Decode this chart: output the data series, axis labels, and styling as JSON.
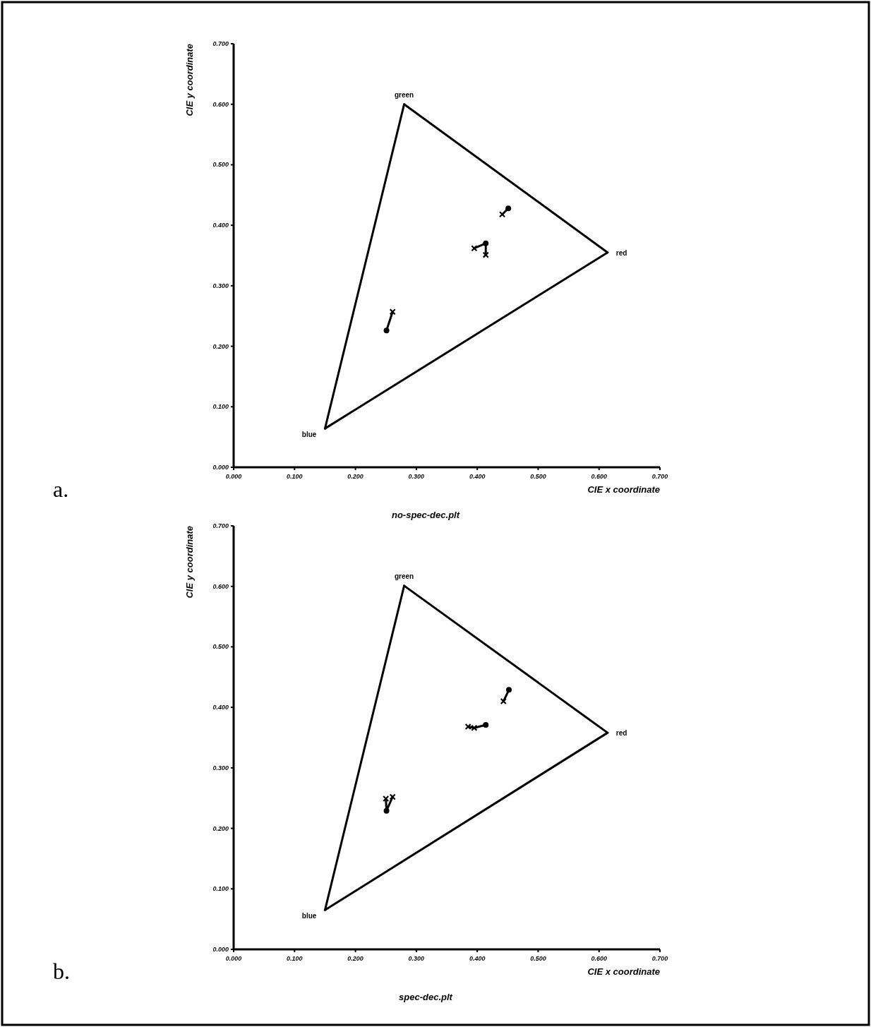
{
  "chart_data": [
    {
      "type": "scatter",
      "title": "no-spec-dec.plt",
      "xlabel": "CIE x coordinate",
      "ylabel": "CIE y coordinate",
      "xlim": [
        0,
        0.7
      ],
      "ylim": [
        0,
        0.7
      ],
      "xticks": [
        {
          "value": 0,
          "label": "0.000"
        },
        {
          "value": 0.1,
          "label": "0.100"
        },
        {
          "value": 0.2,
          "label": "0.200"
        },
        {
          "value": 0.3,
          "label": "0.300"
        },
        {
          "value": 0.4,
          "label": "0.400"
        },
        {
          "value": 0.5,
          "label": "0.500"
        },
        {
          "value": 0.6,
          "label": "0.600"
        },
        {
          "value": 0.7,
          "label": "0.700"
        }
      ],
      "yticks": [
        {
          "value": 0,
          "label": "0.000"
        },
        {
          "value": 0.1,
          "label": "0.100"
        },
        {
          "value": 0.2,
          "label": "0.200"
        },
        {
          "value": 0.3,
          "label": "0.300"
        },
        {
          "value": 0.4,
          "label": "0.400"
        },
        {
          "value": 0.5,
          "label": "0.500"
        },
        {
          "value": 0.6,
          "label": "0.600"
        },
        {
          "value": 0.7,
          "label": "0.700"
        }
      ],
      "series": [
        {
          "type": "line",
          "color": "#000000",
          "marker": "none",
          "x": [
            0.15,
            0.28
          ],
          "values": [
            0.064,
            0.6
          ]
        },
        {
          "type": "line",
          "color": "#000000",
          "marker": "none",
          "x": [
            0.28,
            0.614
          ],
          "values": [
            0.6,
            0.355
          ]
        },
        {
          "type": "line",
          "color": "#000000",
          "marker": "none",
          "x": [
            0.15,
            0.614
          ],
          "values": [
            0.064,
            0.355
          ]
        },
        {
          "type": "line",
          "color": "#000000",
          "marker": "none",
          "x": [
            0.441,
            0.451
          ],
          "values": [
            0.418,
            0.428
          ]
        },
        {
          "type": "line",
          "color": "#000000",
          "marker": "none",
          "x": [
            0.395,
            0.414,
            0.414
          ],
          "values": [
            0.362,
            0.37,
            0.351
          ]
        },
        {
          "type": "line",
          "color": "#000000",
          "marker": "none",
          "x": [
            0.251,
            0.261
          ],
          "values": [
            0.226,
            0.257
          ]
        },
        {
          "type": "scatter",
          "color": "#000000",
          "marker": "circle",
          "x": [
            0.451,
            0.414,
            0.251
          ],
          "values": [
            0.428,
            0.37,
            0.226
          ]
        },
        {
          "type": "scatter",
          "color": "#000000",
          "marker": "cross",
          "x": [
            0.441,
            0.395,
            0.414,
            0.261
          ],
          "values": [
            0.418,
            0.362,
            0.351,
            0.257
          ]
        }
      ],
      "annotations": [
        {
          "text": "green",
          "x": 0.28,
          "y": 0.6
        },
        {
          "text": "red",
          "x": 0.614,
          "y": 0.355
        },
        {
          "text": "blue",
          "x": 0.15,
          "y": 0.064
        },
        "a."
      ]
    },
    {
      "type": "scatter",
      "title": "spec-dec.plt",
      "xlabel": "CIE x coordinate",
      "ylabel": "CIE y coordinate",
      "xlim": [
        0,
        0.7
      ],
      "ylim": [
        0,
        0.7
      ],
      "xticks": [
        {
          "value": 0,
          "label": "0.000"
        },
        {
          "value": 0.1,
          "label": "0.100"
        },
        {
          "value": 0.2,
          "label": "0.200"
        },
        {
          "value": 0.3,
          "label": "0.300"
        },
        {
          "value": 0.4,
          "label": "0.400"
        },
        {
          "value": 0.5,
          "label": "0.500"
        },
        {
          "value": 0.6,
          "label": "0.600"
        },
        {
          "value": 0.7,
          "label": "0.700"
        }
      ],
      "yticks": [
        {
          "value": 0,
          "label": "0.000"
        },
        {
          "value": 0.1,
          "label": "0.100"
        },
        {
          "value": 0.2,
          "label": "0.200"
        },
        {
          "value": 0.3,
          "label": "0.300"
        },
        {
          "value": 0.4,
          "label": "0.400"
        },
        {
          "value": 0.5,
          "label": "0.500"
        },
        {
          "value": 0.6,
          "label": "0.600"
        },
        {
          "value": 0.7,
          "label": "0.700"
        }
      ],
      "series": [
        {
          "type": "line",
          "color": "#000000",
          "marker": "none",
          "x": [
            0.15,
            0.28
          ],
          "values": [
            0.065,
            0.601
          ]
        },
        {
          "type": "line",
          "color": "#000000",
          "marker": "none",
          "x": [
            0.28,
            0.614
          ],
          "values": [
            0.601,
            0.358
          ]
        },
        {
          "type": "line",
          "color": "#000000",
          "marker": "none",
          "x": [
            0.15,
            0.614
          ],
          "values": [
            0.065,
            0.358
          ]
        },
        {
          "type": "line",
          "color": "#000000",
          "marker": "none",
          "x": [
            0.443,
            0.452
          ],
          "values": [
            0.41,
            0.429
          ]
        },
        {
          "type": "line",
          "color": "#000000",
          "marker": "none",
          "x": [
            0.385,
            0.395,
            0.414
          ],
          "values": [
            0.368,
            0.366,
            0.371
          ]
        },
        {
          "type": "line",
          "color": "#000000",
          "marker": "none",
          "x": [
            0.25,
            0.251,
            0.261
          ],
          "values": [
            0.249,
            0.229,
            0.252
          ]
        },
        {
          "type": "scatter",
          "color": "#000000",
          "marker": "circle",
          "x": [
            0.452,
            0.414,
            0.251
          ],
          "values": [
            0.429,
            0.371,
            0.229
          ]
        },
        {
          "type": "scatter",
          "color": "#000000",
          "marker": "cross",
          "x": [
            0.443,
            0.395,
            0.385,
            0.261,
            0.25
          ],
          "values": [
            0.41,
            0.366,
            0.368,
            0.252,
            0.249
          ]
        }
      ],
      "annotations": [
        {
          "text": "green",
          "x": 0.28,
          "y": 0.601
        },
        {
          "text": "red",
          "x": 0.614,
          "y": 0.358
        },
        {
          "text": "blue",
          "x": 0.15,
          "y": 0.065
        },
        "b."
      ]
    }
  ]
}
